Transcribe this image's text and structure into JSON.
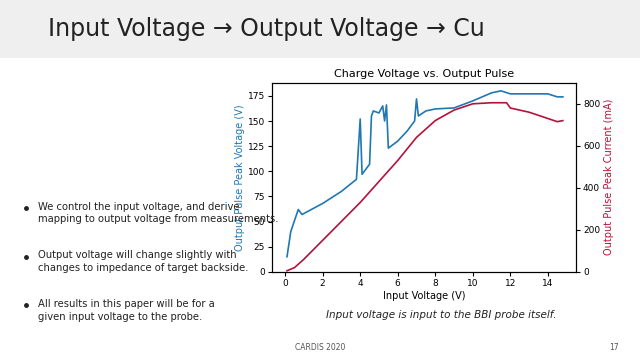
{
  "chart_data": {
    "type": "line",
    "title": "Charge Voltage vs. Output Pulse",
    "x_label": "Input Voltage (V)",
    "y_label": "Output Pulse Peak Voltage (V)",
    "y2_label": "Output Pulse Peak Current (mA)",
    "xlim": [
      -0.7,
      15.5
    ],
    "xticks": [
      0,
      2,
      4,
      6,
      8,
      10,
      12,
      14
    ],
    "ylim": [
      0,
      188
    ],
    "yticks": [
      0,
      25,
      50,
      75,
      100,
      125,
      150,
      175
    ],
    "y2lim": [
      0,
      900
    ],
    "y2ticks": [
      0,
      200,
      400,
      600,
      800
    ],
    "grid": false,
    "series": [
      {
        "name": "Output Pulse Peak Voltage (V)",
        "color": "#1f77b4",
        "axis": "y",
        "x": [
          0.1,
          0.3,
          0.7,
          0.9,
          1.2,
          2.0,
          3.0,
          3.8,
          4.0,
          4.1,
          4.5,
          4.6,
          4.7,
          5.0,
          5.2,
          5.3,
          5.4,
          5.5,
          6.0,
          6.5,
          6.9,
          7.0,
          7.1,
          7.5,
          8.0,
          9.0,
          10.0,
          11.0,
          11.5,
          12.0,
          13.0,
          14.0,
          14.5,
          14.8
        ],
        "values": [
          15,
          40,
          62,
          57,
          60,
          68,
          80,
          92,
          152,
          97,
          107,
          155,
          160,
          158,
          165,
          150,
          166,
          123,
          130,
          140,
          150,
          172,
          155,
          160,
          162,
          163,
          170,
          178,
          180,
          177,
          177,
          177,
          174,
          174
        ]
      },
      {
        "name": "Output Pulse Peak Current (mA)",
        "color": "#b5123a",
        "axis": "y2",
        "x": [
          0.1,
          0.5,
          1.0,
          2.0,
          3.0,
          4.0,
          4.5,
          5.0,
          6.0,
          7.0,
          8.0,
          9.0,
          10.0,
          11.0,
          11.8,
          12.0,
          13.0,
          14.0,
          14.5,
          14.8
        ],
        "values": [
          5,
          20,
          60,
          150,
          240,
          330,
          380,
          430,
          530,
          640,
          720,
          770,
          800,
          805,
          805,
          780,
          760,
          730,
          715,
          720
        ]
      }
    ],
    "annotations": [
      "Input Voltage → Output Voltage → Cu",
      "We control the input voltage, and derive mapping to output voltage from measurements.",
      "Output voltage will change slightly with changes to impedance of target backside.",
      "All results in this paper will be for a given input voltage to the probe.",
      "Input voltage is input to the BBI probe itself.",
      "CARDIS 2020",
      "17"
    ]
  }
}
